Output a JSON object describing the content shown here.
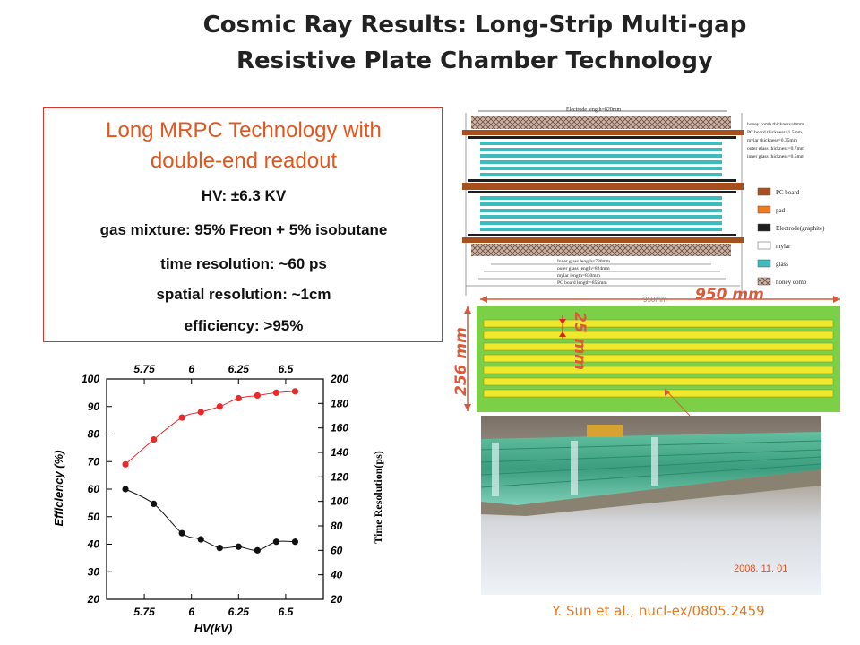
{
  "slide": {
    "title_line1": "Cosmic Ray Results: Long-Strip Multi-gap",
    "title_line2": "Resistive Plate Chamber Technology",
    "citation": "Y. Sun et al., nucl-ex/0805.2459"
  },
  "box": {
    "heading_line1": "Long MRPC Technology with",
    "heading_line2": "double-end readout",
    "lines": [
      "HV: ±6.3 KV",
      "gas mixture: 95% Freon + 5% isobutane",
      "time resolution: ~60 ps",
      "spatial resolution: ~1cm",
      "efficiency: >95%"
    ]
  },
  "diagram": {
    "labels": {
      "electrode_length": "Electrode length=820mm",
      "honeycomb_thickness": "honey comb thickness=8mm",
      "pc_board_thickness": "PC board thickness=1.5mm",
      "mylar_thickness": "mylar thickness=0.35mm",
      "outer_glass_thickness": "outer glass thickness=0.7mm",
      "inner_glass_thickness": "inner glass thickness=0.5mm",
      "inner_glass_length": "Inner glass length=780mm",
      "outer_glass_length": "outer glass length=824mm",
      "mylar_length": "mylar length=830mm",
      "pc_board_length": "PC board length=855mm"
    },
    "legend": [
      {
        "label": "PC board",
        "color": "#a8501d"
      },
      {
        "label": "pad",
        "color": "#f07820"
      },
      {
        "label": "Electrode(graphite)",
        "color": "#1e1e1e"
      },
      {
        "label": "mylar",
        "color": "#ffffff"
      },
      {
        "label": "glass",
        "color": "#3cbcbc"
      },
      {
        "label": "honey comb",
        "color": "#9a7a6a"
      }
    ]
  },
  "strip": {
    "small_label": "950mm",
    "length_label": "950 mm",
    "width_label": "256 mm",
    "pitch_label": "25 mm",
    "board_color": "#7bd048",
    "strip_color": "#f0e82a"
  },
  "photo": {
    "date_stamp": "2008. 11. 01"
  },
  "chart_data": {
    "type": "scatter",
    "xlabel": "HV(kV)",
    "ylabel": "Efficiency (%)",
    "y2label": "Time Resolution(ps)",
    "xlim": [
      5.55,
      6.7
    ],
    "ylim": [
      20,
      100
    ],
    "y2lim": [
      20,
      200
    ],
    "x_ticks": [
      "5.75",
      "6",
      "6.25",
      "6.5"
    ],
    "x_tick_values": [
      5.75,
      6.0,
      6.25,
      6.5
    ],
    "y_ticks": [
      "100",
      "90",
      "80",
      "70",
      "60",
      "50",
      "40",
      "30",
      "20"
    ],
    "y2_ticks": [
      "200",
      "180",
      "160",
      "140",
      "120",
      "100",
      "80",
      "60",
      "40",
      "20"
    ],
    "series": [
      {
        "axis": "left",
        "color": "#e82a2a",
        "x": [
          5.65,
          5.8,
          5.95,
          6.05,
          6.15,
          6.25,
          6.35,
          6.45,
          6.55
        ],
        "y": [
          69,
          78,
          86,
          88,
          90,
          93,
          94,
          95,
          95.5
        ]
      },
      {
        "axis": "right",
        "color": "#111111",
        "x": [
          5.65,
          5.8,
          5.95,
          6.05,
          6.15,
          6.25,
          6.35,
          6.45,
          6.55
        ],
        "y": [
          110,
          98,
          74,
          69,
          62,
          63,
          60,
          67,
          67
        ]
      }
    ]
  }
}
